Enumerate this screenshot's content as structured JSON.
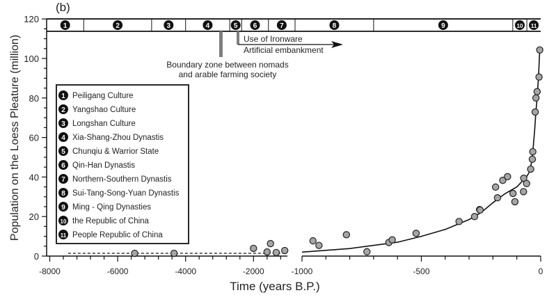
{
  "chart_data": {
    "type": "scatter",
    "panel_label": "(b)",
    "xlabel": "Time (years B.P.)",
    "ylabel": "Population on the Loess Pleature (million)",
    "ylim": [
      0,
      120
    ],
    "x_axis_broken": true,
    "x_segments": [
      {
        "range": [
          -8000,
          -1000
        ],
        "ticks": [
          -8000,
          -6000,
          -4000,
          -2000
        ],
        "tick_labels": [
          "-8000",
          "-6000",
          "-4000",
          "-2000"
        ]
      },
      {
        "range": [
          -1000,
          0
        ],
        "ticks": [
          -1000,
          -500,
          0
        ],
        "tick_labels": [
          "-1000",
          "-500",
          "0"
        ]
      }
    ],
    "y_ticks": [
      0,
      20,
      40,
      60,
      80,
      100,
      120
    ],
    "y_tick_labels": [
      "0",
      "20",
      "40",
      "60",
      "80",
      "100",
      "120"
    ],
    "series": [
      {
        "name": "Population records",
        "points": [
          [
            -5500,
            1.4
          ],
          [
            -4340,
            1.4
          ],
          [
            -2000,
            3.9
          ],
          [
            -1500,
            6.3
          ],
          [
            -1600,
            2.1
          ],
          [
            -1330,
            1.8
          ],
          [
            -1080,
            2.8
          ],
          [
            -954,
            7.7
          ],
          [
            -929,
            5.4
          ],
          [
            -814,
            10.8
          ],
          [
            -728,
            2.2
          ],
          [
            -636,
            6.9
          ],
          [
            -622,
            8.2
          ],
          [
            -522,
            11.5
          ],
          [
            -342,
            17.5
          ],
          [
            -277,
            20.0
          ],
          [
            -256,
            23.5
          ],
          [
            -254,
            23.3
          ],
          [
            -189,
            34.9
          ],
          [
            -181,
            29.5
          ],
          [
            -159,
            38.3
          ],
          [
            -139,
            40.2
          ],
          [
            -116,
            31.7
          ],
          [
            -108,
            27.5
          ],
          [
            -72,
            32.6
          ],
          [
            -71,
            39.4
          ],
          [
            -59,
            36.7
          ],
          [
            -42,
            44.0
          ],
          [
            -35,
            49.0
          ],
          [
            -33,
            52.8
          ],
          [
            -23,
            72.9
          ],
          [
            -20,
            80.0
          ],
          [
            -15,
            83.2
          ],
          [
            -7,
            90.6
          ],
          [
            -4,
            104.3
          ]
        ]
      },
      {
        "name": "Fitted curve",
        "points": [
          [
            -1000,
            2
          ],
          [
            -800,
            3.8
          ],
          [
            -600,
            7
          ],
          [
            -500,
            10
          ],
          [
            -400,
            13.5
          ],
          [
            -300,
            18.5
          ],
          [
            -250,
            22
          ],
          [
            -200,
            27
          ],
          [
            -150,
            31.5
          ],
          [
            -100,
            35
          ],
          [
            -60,
            40
          ],
          [
            -45,
            43
          ],
          [
            -35,
            50
          ],
          [
            -25,
            64
          ],
          [
            -20,
            73
          ],
          [
            -15,
            80
          ],
          [
            -9,
            91
          ],
          [
            -4,
            104
          ]
        ]
      },
      {
        "name": "Baseline (dashed)",
        "points": [
          [
            -7460,
            1.4
          ],
          [
            -1100,
            1.4
          ]
        ]
      }
    ],
    "periods": [
      {
        "num": "1",
        "start": -8000,
        "end": -7000
      },
      {
        "num": "2",
        "start": -7000,
        "end": -5000
      },
      {
        "num": "3",
        "start": -5000,
        "end": -4000
      },
      {
        "num": "4",
        "start": -4000,
        "end": -2700
      },
      {
        "num": "5",
        "start": -2700,
        "end": -2350
      },
      {
        "num": "6",
        "start": -2350,
        "end": -1560
      },
      {
        "num": "7",
        "start": -1560,
        "end": -1000
      },
      {
        "num": "8",
        "start": -1000,
        "end": -700
      },
      {
        "num": "9",
        "start": -700,
        "end": -117
      },
      {
        "num": "10",
        "start": -117,
        "end": -58
      },
      {
        "num": "11",
        "start": -58,
        "end": 0
      }
    ],
    "legend": {
      "placement": "center-left",
      "items": [
        {
          "num": "1",
          "label": "Peiligang Culture"
        },
        {
          "num": "2",
          "label": "Yangshao Culture"
        },
        {
          "num": "3",
          "label": "Longshan Culture"
        },
        {
          "num": "4",
          "label": "Xia-Shang-Zhou Dynastis"
        },
        {
          "num": "5",
          "label": "Chunqiu & Warrior State"
        },
        {
          "num": "6",
          "label": "Qin-Han Dynastis"
        },
        {
          "num": "7",
          "label": "Northern-Southern Dynastis"
        },
        {
          "num": "8",
          "label": "Sui-Tang-Song-Yuan Dynastis"
        },
        {
          "num": "9",
          "label": "Ming - Qing Dynasties"
        },
        {
          "num": "10",
          "label": "the Republic of China"
        },
        {
          "num": "11",
          "label": "People Republic of China"
        }
      ]
    },
    "annotations": {
      "boundary_line1": "Boundary zone between nomads",
      "boundary_line2": "and arable farming society",
      "ironware": "Use of Ironware",
      "embankment": "Artificial embankment"
    },
    "colors": {
      "point_fill": "#a6a6a6",
      "marker_bar": "#7f7f7f",
      "ink": "#111111"
    }
  }
}
